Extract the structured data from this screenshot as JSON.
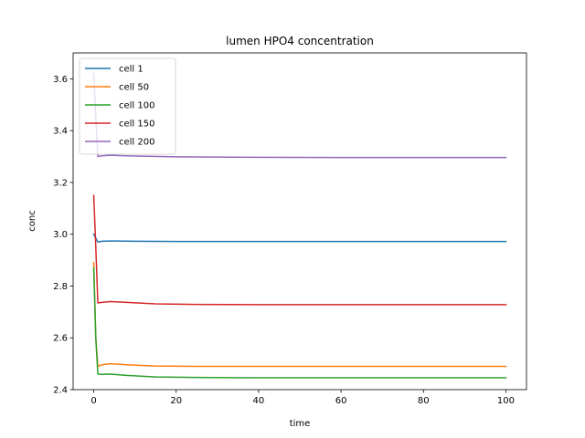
{
  "chart_data": {
    "type": "line",
    "title": "lumen HPO4 concentration",
    "xlabel": "time",
    "ylabel": "conc",
    "xlim": [
      -5,
      105
    ],
    "ylim": [
      2.4,
      3.7
    ],
    "xticks": [
      0,
      20,
      40,
      60,
      80,
      100
    ],
    "xtick_labels": [
      "0",
      "20",
      "40",
      "60",
      "80",
      "100"
    ],
    "yticks": [
      2.4,
      2.6,
      2.8,
      3.0,
      3.2,
      3.4,
      3.6
    ],
    "ytick_labels": [
      "2.4",
      "2.6",
      "2.8",
      "3.0",
      "3.2",
      "3.4",
      "3.6"
    ],
    "grid": false,
    "legend_position": "top-left",
    "series": [
      {
        "name": "cell 1",
        "color": "#1f77b4",
        "x": [
          0,
          1,
          2,
          4,
          10,
          20,
          40,
          60,
          80,
          100
        ],
        "y": [
          3.0,
          2.97,
          2.973,
          2.974,
          2.973,
          2.972,
          2.972,
          2.972,
          2.972,
          2.972
        ]
      },
      {
        "name": "cell 50",
        "color": "#ff7f0e",
        "x": [
          0,
          0.5,
          1,
          2,
          4,
          8,
          15,
          25,
          40,
          60,
          80,
          100
        ],
        "y": [
          2.89,
          2.6,
          2.49,
          2.496,
          2.5,
          2.496,
          2.491,
          2.49,
          2.49,
          2.49,
          2.49,
          2.49
        ]
      },
      {
        "name": "cell 100",
        "color": "#2ca02c",
        "x": [
          0,
          0.5,
          1,
          2,
          4,
          8,
          15,
          25,
          40,
          60,
          80,
          100
        ],
        "y": [
          2.87,
          2.6,
          2.46,
          2.459,
          2.46,
          2.455,
          2.449,
          2.447,
          2.446,
          2.446,
          2.446,
          2.446
        ]
      },
      {
        "name": "cell 150",
        "color": "#d62728",
        "x": [
          0,
          0.5,
          1,
          2,
          4,
          8,
          15,
          25,
          40,
          60,
          80,
          100
        ],
        "y": [
          3.15,
          2.95,
          2.735,
          2.737,
          2.74,
          2.737,
          2.731,
          2.729,
          2.728,
          2.728,
          2.728,
          2.728
        ]
      },
      {
        "name": "cell 200",
        "color": "#9467bd",
        "x": [
          0,
          0.5,
          1,
          2,
          4,
          8,
          20,
          40,
          60,
          80,
          100
        ],
        "y": [
          3.62,
          3.45,
          3.3,
          3.303,
          3.305,
          3.303,
          3.299,
          3.297,
          3.296,
          3.296,
          3.296
        ]
      }
    ]
  }
}
